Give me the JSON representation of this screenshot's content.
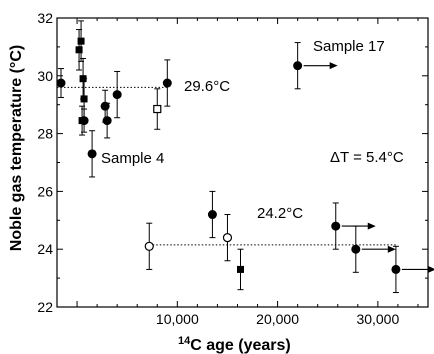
{
  "chart_data": {
    "type": "scatter",
    "xlabel_sup": "14",
    "xlabel_main": "C age (years)",
    "ylabel": "Noble gas temperature (°C)",
    "xlim": [
      -2000,
      35000
    ],
    "ylim": [
      22,
      32
    ],
    "x_ticks": [
      10000,
      20000,
      30000
    ],
    "x_tick_labels": [
      "10,000",
      "20,000",
      "30,000"
    ],
    "y_ticks": [
      22,
      24,
      26,
      28,
      30,
      32
    ],
    "y_tick_labels": [
      "22",
      "24",
      "26",
      "28",
      "30",
      "32"
    ],
    "grid": false,
    "series": [
      {
        "marker": "filled-circle",
        "points": [
          {
            "x": -1600,
            "y": 29.75,
            "err": 0.5
          },
          {
            "x": 700,
            "y": 28.45,
            "err": 0.4
          },
          {
            "x": 1500,
            "y": 27.3,
            "err": 0.8
          },
          {
            "x": 2800,
            "y": 28.95,
            "err": 0.55
          },
          {
            "x": 3000,
            "y": 28.45,
            "err": 0.6
          },
          {
            "x": 4000,
            "y": 29.35,
            "err": 0.8
          },
          {
            "x": 9000,
            "y": 29.75,
            "err": 0.8
          },
          {
            "x": 13500,
            "y": 25.2,
            "err": 0.8
          },
          {
            "x": 22000,
            "y": 30.35,
            "err": 0.8
          },
          {
            "x": 25800,
            "y": 24.8,
            "err": 0.8
          },
          {
            "x": 27800,
            "y": 24.0,
            "err": 0.8
          },
          {
            "x": 31800,
            "y": 23.3,
            "err": 0.8
          }
        ]
      },
      {
        "marker": "filled-square",
        "points": [
          {
            "x": 200,
            "y": 30.9,
            "err": 0.7
          },
          {
            "x": 400,
            "y": 31.2,
            "err": 0.7
          },
          {
            "x": 600,
            "y": 29.9,
            "err": 0.7
          },
          {
            "x": 700,
            "y": 29.2,
            "err": 0.7
          },
          {
            "x": 500,
            "y": 28.45,
            "err": 0.5
          },
          {
            "x": 16300,
            "y": 23.3,
            "err": 0.7
          }
        ]
      },
      {
        "marker": "open-circle",
        "points": [
          {
            "x": 7200,
            "y": 24.1,
            "err": 0.8
          },
          {
            "x": 15000,
            "y": 24.4,
            "err": 0.8
          }
        ]
      },
      {
        "marker": "open-square",
        "points": [
          {
            "x": 8000,
            "y": 28.85,
            "err": 0.7
          }
        ]
      }
    ],
    "reference_lines": [
      {
        "label": "29.6°C",
        "y": 29.6,
        "x_start": -2000,
        "x_end": 9000
      },
      {
        "label": "24.2°C",
        "y": 24.15,
        "x_start": 7200,
        "x_end": 31800
      }
    ],
    "arrows": [
      {
        "x": 22000,
        "y": 30.35
      },
      {
        "x": 25800,
        "y": 24.8
      },
      {
        "x": 27800,
        "y": 24.0
      },
      {
        "x": 31800,
        "y": 23.3
      }
    ],
    "annotations": {
      "sample17": "Sample 17",
      "sample4": "Sample 4",
      "delta_t": "ΔT = 5.4°C"
    }
  }
}
